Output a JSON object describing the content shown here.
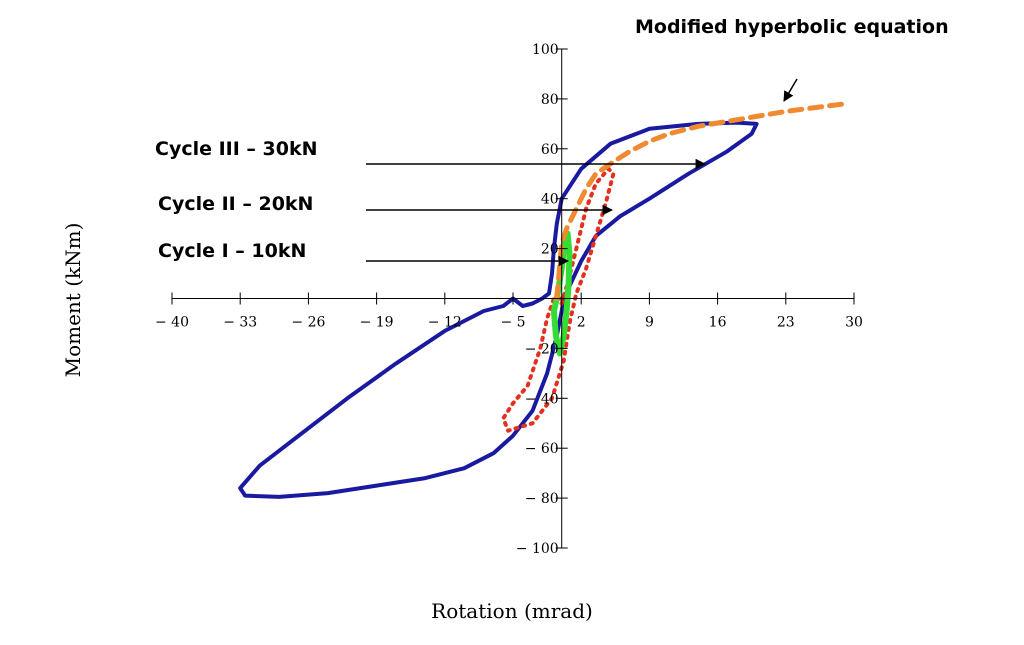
{
  "chart_data": {
    "type": "line",
    "title": "",
    "xlabel": "Rotation (mrad)",
    "ylabel": "Moment (kNm)",
    "xlim": [
      -40,
      30
    ],
    "ylim": [
      -100,
      100
    ],
    "x_ticks": [
      -40,
      -33,
      -26,
      -19,
      -12,
      -5,
      2,
      9,
      16,
      23,
      30
    ],
    "x_tick_labels": [
      "− 40",
      "− 33",
      "− 26",
      "− 19",
      "− 12",
      "− 5",
      "2",
      "9",
      "16",
      "23",
      "30"
    ],
    "y_ticks": [
      -100,
      -80,
      -60,
      -40,
      -20,
      20,
      40,
      60,
      80,
      100
    ],
    "y_tick_labels": [
      "− 100",
      "− 80",
      "− 60",
      "− 40",
      "− 20",
      "20",
      "40",
      "60",
      "80",
      "100"
    ],
    "grid": false,
    "series": [
      {
        "name": "Cycle III - 30kN",
        "color": "#1a1aa0",
        "style": "solid",
        "points": [
          [
            0,
            -2
          ],
          [
            0.8,
            5
          ],
          [
            2,
            15
          ],
          [
            3.5,
            25
          ],
          [
            6,
            33
          ],
          [
            9,
            40
          ],
          [
            13,
            50
          ],
          [
            17,
            59
          ],
          [
            19.5,
            66
          ],
          [
            20,
            70
          ],
          [
            18,
            70.5
          ],
          [
            14,
            70
          ],
          [
            9,
            68
          ],
          [
            5,
            62
          ],
          [
            2,
            52
          ],
          [
            0,
            40
          ],
          [
            -0.5,
            30
          ],
          [
            -0.8,
            20
          ],
          [
            -1,
            10
          ],
          [
            -1.3,
            2
          ],
          [
            -2,
            0
          ],
          [
            -3,
            -2
          ],
          [
            -4,
            -3
          ],
          [
            -5,
            0
          ],
          [
            -6,
            -3
          ],
          [
            -8,
            -5
          ],
          [
            -12,
            -13
          ],
          [
            -17,
            -26
          ],
          [
            -22,
            -40
          ],
          [
            -27,
            -55
          ],
          [
            -31,
            -67
          ],
          [
            -33,
            -76
          ],
          [
            -32.5,
            -79
          ],
          [
            -29,
            -79.5
          ],
          [
            -24,
            -78
          ],
          [
            -19,
            -75
          ],
          [
            -14,
            -72
          ],
          [
            -10,
            -68
          ],
          [
            -7,
            -62
          ],
          [
            -5,
            -55
          ],
          [
            -3,
            -45
          ],
          [
            -1.5,
            -30
          ],
          [
            -0.5,
            -15
          ],
          [
            0,
            -5
          ],
          [
            0.2,
            0
          ]
        ]
      },
      {
        "name": "Cycle II - 20kN",
        "color": "#e53020",
        "style": "dotted",
        "points": [
          [
            0,
            -2
          ],
          [
            0.6,
            6
          ],
          [
            1.5,
            20
          ],
          [
            2.5,
            36
          ],
          [
            3.5,
            46
          ],
          [
            4.8,
            52
          ],
          [
            5.3,
            50
          ],
          [
            4.5,
            38
          ],
          [
            3.5,
            25
          ],
          [
            2.5,
            12
          ],
          [
            1.5,
            2
          ],
          [
            0.8,
            -10
          ],
          [
            0.2,
            -25
          ],
          [
            -1,
            -40
          ],
          [
            -3,
            -50
          ],
          [
            -5.5,
            -53
          ],
          [
            -6,
            -48
          ],
          [
            -5,
            -42
          ],
          [
            -3.5,
            -35
          ],
          [
            -2.2,
            -20
          ],
          [
            -1.5,
            -8
          ],
          [
            -0.8,
            0
          ],
          [
            0,
            0
          ]
        ]
      },
      {
        "name": "Cycle I - 10kN",
        "color": "#33dd33",
        "style": "solid",
        "points": [
          [
            -0.5,
            0
          ],
          [
            0,
            12
          ],
          [
            0.3,
            22
          ],
          [
            0.6,
            26
          ],
          [
            0.8,
            18
          ],
          [
            0.7,
            5
          ],
          [
            0.5,
            -5
          ],
          [
            0.2,
            -15
          ],
          [
            -0.2,
            -22
          ],
          [
            -0.6,
            -15
          ],
          [
            -0.8,
            -5
          ],
          [
            -0.5,
            0
          ]
        ]
      },
      {
        "name": "Modified hyperbolic equation",
        "color": "#f08a30",
        "style": "dashed",
        "points": [
          [
            -0.5,
            0
          ],
          [
            0,
            22
          ],
          [
            0.5,
            28
          ],
          [
            1.5,
            36
          ],
          [
            2.5,
            44
          ],
          [
            3.5,
            50
          ],
          [
            5,
            54
          ],
          [
            7,
            59
          ],
          [
            9,
            63
          ],
          [
            11,
            66
          ],
          [
            14,
            69
          ],
          [
            17,
            71
          ],
          [
            20,
            73
          ],
          [
            23,
            75
          ],
          [
            26,
            76.5
          ],
          [
            29,
            78
          ]
        ]
      }
    ],
    "annotations": [
      {
        "text": "Cycle III – 30kN",
        "arrow_to": [
          14,
          55
        ]
      },
      {
        "text": "Cycle II – 20kN",
        "arrow_to": [
          5,
          37
        ]
      },
      {
        "text": "Cycle I – 10kN",
        "arrow_to": [
          0,
          16
        ]
      },
      {
        "text": "Modified hyperbolic equation",
        "arrow_to": [
          22,
          78
        ]
      }
    ]
  }
}
